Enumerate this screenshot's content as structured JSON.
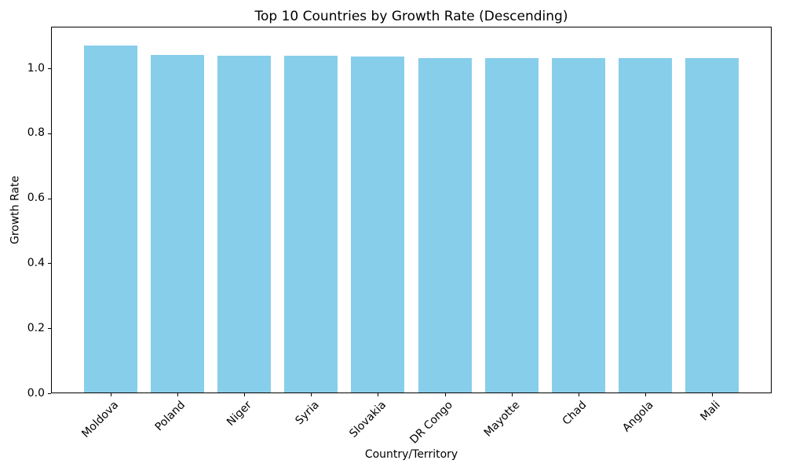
{
  "page": {
    "background_color": "#ffffff"
  },
  "chart_data": {
    "type": "bar",
    "title": "Top 10 Countries by Growth Rate (Descending)",
    "xlabel": "Country/Territory",
    "ylabel": "Growth Rate",
    "categories": [
      "Moldova",
      "Poland",
      "Niger",
      "Syria",
      "Slovakia",
      "DR Congo",
      "Mayotte",
      "Chad",
      "Angola",
      "Mali"
    ],
    "values": [
      1.0691,
      1.0404,
      1.0378,
      1.0376,
      1.0364,
      1.0322,
      1.0318,
      1.0316,
      1.0315,
      1.0313
    ],
    "bar_color": "#87CEEB",
    "axis_color": "#000000",
    "ylim": [
      0,
      1.128
    ],
    "yticks": [
      0.0,
      0.2,
      0.4,
      0.6,
      0.8,
      1.0
    ],
    "ytick_labels": [
      "0.0",
      "0.2",
      "0.4",
      "0.6",
      "0.8",
      "1.0"
    ],
    "x_tick_rotation_deg": 45,
    "bar_width_fraction": 0.8,
    "grid": false,
    "legend": "none",
    "sort_order": "descending"
  }
}
